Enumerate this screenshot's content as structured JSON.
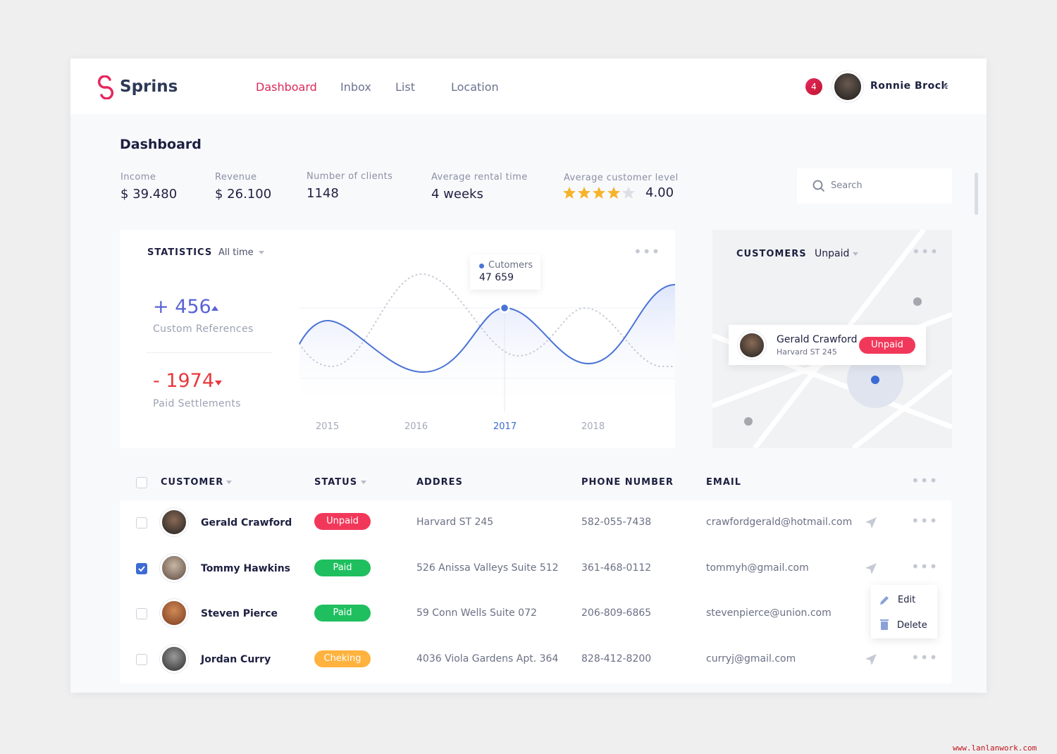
{
  "header": {
    "logo": "Sprins",
    "nav": [
      "Dashboard",
      "Inbox",
      "List",
      "Location"
    ],
    "notifications": "4",
    "user": "Ronnie Brock"
  },
  "page_title": "Dashboard",
  "stats": [
    {
      "label": "Income",
      "value": "$ 39.480"
    },
    {
      "label": "Revenue",
      "value": "$ 26.100"
    },
    {
      "label": "Number of clients",
      "value": "1148"
    },
    {
      "label": "Average rental time",
      "value": "4 weeks"
    },
    {
      "label": "Average customer level",
      "value": "4.00"
    }
  ],
  "search": "Search",
  "statistics": {
    "title": "STATISTICS",
    "filter": "All time",
    "metrics": [
      {
        "value": "+ 456",
        "label": "Custom References"
      },
      {
        "value": "- 1974",
        "label": "Paid Settlements"
      }
    ],
    "tooltip": {
      "label": "Cutomers",
      "value": "47 659"
    },
    "years": [
      "2015",
      "2016",
      "2017",
      "2018"
    ]
  },
  "customers_card": {
    "title": "CUSTOMERS",
    "filter": "Unpaid",
    "name": "Gerald Crawford",
    "address": "Harvard ST 245",
    "status": "Unpaid"
  },
  "table": {
    "headers": [
      "CUSTOMER",
      "STATUS",
      "ADDRES",
      "PHONE NUMBER",
      "EMAIL"
    ],
    "rows": [
      [
        "Gerald Crawford",
        "Unpaid",
        "Harvard ST 245",
        "582-055-7438",
        "crawfordgerald@hotmail.com"
      ],
      [
        "Tommy Hawkins",
        "Paid",
        "526 Anissa Valleys Suite 512",
        "361-468-0112",
        "tommyh@gmail.com"
      ],
      [
        "Steven Pierce",
        "Paid",
        "59 Conn Wells Suite 072",
        "206-809-6865",
        "stevenpierce@union.com"
      ],
      [
        "Jordan Curry",
        "Cheking",
        "4036 Viola Gardens Apt. 364",
        "828-412-8200",
        "curryj@gmail.com"
      ]
    ],
    "menu": [
      "Edit",
      "Delete"
    ]
  },
  "watermark": "www.lanlanwork.com"
}
